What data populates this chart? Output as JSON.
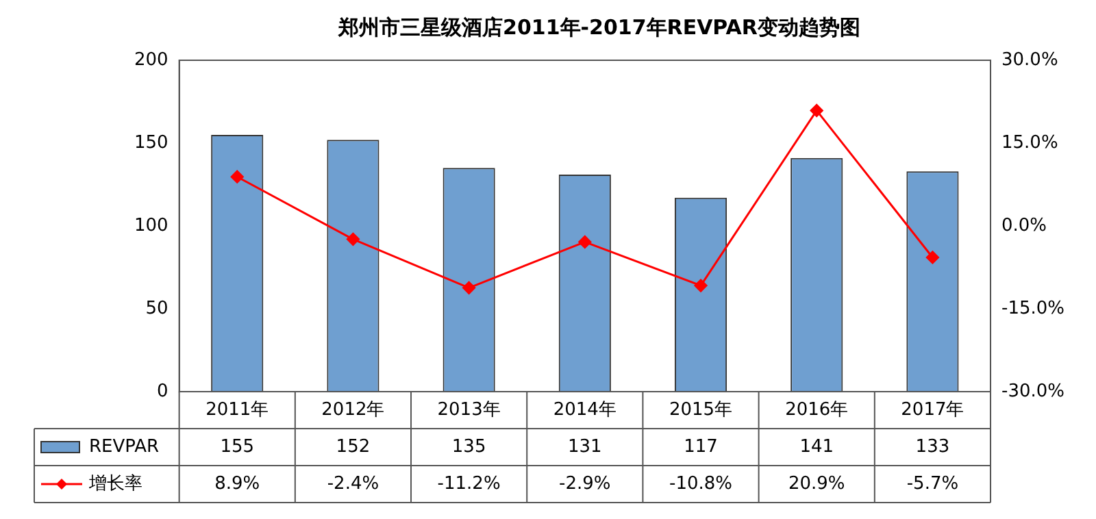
{
  "chart_data": {
    "type": "bar",
    "title": "郑州市三星级酒店2011年-2017年REVPAR变动趋势图",
    "categories": [
      "2011年",
      "2012年",
      "2013年",
      "2014年",
      "2015年",
      "2016年",
      "2017年"
    ],
    "series": [
      {
        "name": "REVPAR",
        "color": "#6f9fd0",
        "values": [
          155,
          152,
          135,
          131,
          117,
          141,
          133
        ],
        "value_labels": [
          "155",
          "152",
          "135",
          "131",
          "117",
          "141",
          "133"
        ]
      },
      {
        "name": "增长率",
        "type": "line",
        "axis": "y2",
        "color": "#ff0000",
        "values": [
          8.9,
          -2.4,
          -11.2,
          -2.9,
          -10.8,
          20.9,
          -5.7
        ],
        "value_labels": [
          "8.9%",
          "-2.4%",
          "-11.2%",
          "-2.9%",
          "-10.8%",
          "20.9%",
          "-5.7%"
        ]
      }
    ],
    "ylim": [
      0,
      200
    ],
    "yticks": [
      0,
      50,
      100,
      150,
      200
    ],
    "y2lim": [
      -30,
      30
    ],
    "y2ticks": [
      {
        "value": -30,
        "label": "-30.0%"
      },
      {
        "value": -15,
        "label": "-15.0%"
      },
      {
        "value": 0,
        "label": "0.0%"
      },
      {
        "value": 15,
        "label": "15.0%"
      },
      {
        "value": 30,
        "label": "30.0%"
      }
    ],
    "marker": "diamond",
    "legend": "bottom",
    "grid": false
  }
}
